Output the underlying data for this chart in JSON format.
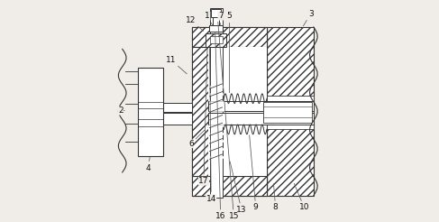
{
  "line_color": "#333333",
  "background": "#f0ede8",
  "figsize": [
    4.87,
    2.46
  ],
  "dpi": 100,
  "positions": {
    "2": [
      0.05,
      0.5,
      0.068,
      0.5
    ],
    "4": [
      0.175,
      0.24,
      0.185,
      0.3
    ],
    "6": [
      0.37,
      0.35,
      0.44,
      0.42
    ],
    "11": [
      0.28,
      0.73,
      0.36,
      0.66
    ],
    "12": [
      0.37,
      0.91,
      0.435,
      0.855
    ],
    "1": [
      0.445,
      0.93,
      0.475,
      0.875
    ],
    "7": [
      0.505,
      0.93,
      0.505,
      0.875
    ],
    "5": [
      0.545,
      0.93,
      0.545,
      0.57
    ],
    "3": [
      0.915,
      0.94,
      0.875,
      0.875
    ],
    "10": [
      0.885,
      0.06,
      0.835,
      0.18
    ],
    "8": [
      0.755,
      0.06,
      0.745,
      0.18
    ],
    "9": [
      0.665,
      0.06,
      0.635,
      0.4
    ],
    "13": [
      0.6,
      0.05,
      0.545,
      0.28
    ],
    "15": [
      0.565,
      0.02,
      0.492,
      0.915
    ],
    "16": [
      0.505,
      0.02,
      0.48,
      0.865
    ],
    "14": [
      0.462,
      0.1,
      0.455,
      0.795
    ],
    "17": [
      0.428,
      0.18,
      0.445,
      0.795
    ]
  }
}
